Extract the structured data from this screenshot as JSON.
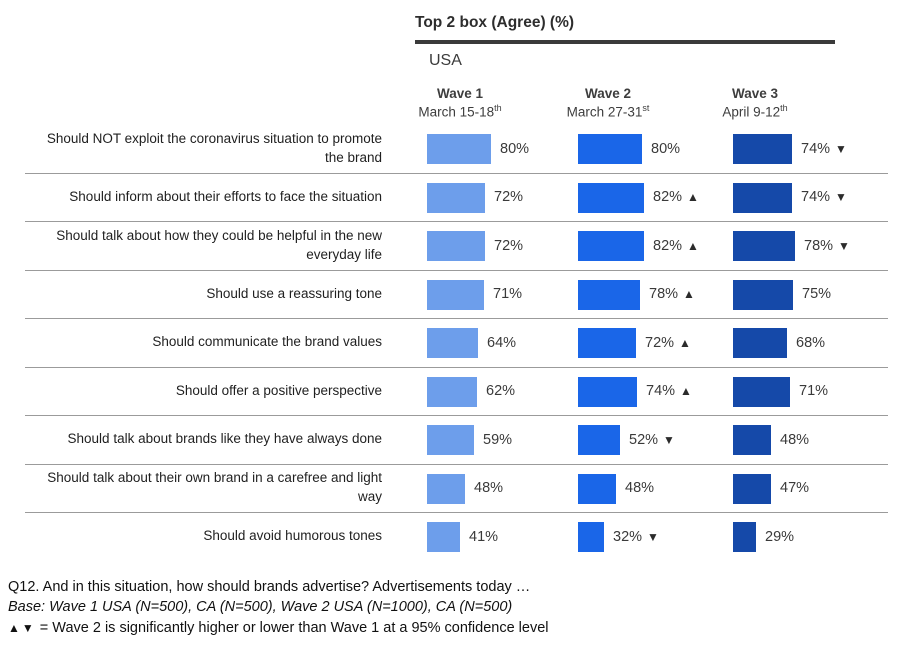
{
  "header": {
    "title": "Top 2 box (Agree) (%)",
    "region": "USA"
  },
  "columns": [
    {
      "wave": "Wave 1",
      "date": "March 15-18",
      "date_sup": "th"
    },
    {
      "wave": "Wave 2",
      "date": "March 27-31",
      "date_sup": "st"
    },
    {
      "wave": "Wave 3",
      "date": "April 9-12",
      "date_sup": "th"
    }
  ],
  "colors": {
    "bar_colors": [
      "#6D9EEB",
      "#1A66E8",
      "#1549A9"
    ],
    "title_rule": "#3A3A3A",
    "row_divider": "#9B9B9B",
    "triangle": "#2B2B2B"
  },
  "chart_data": {
    "type": "bar",
    "orientation": "horizontal",
    "unit": "%",
    "title": "Top 2 box (Agree) (%)",
    "region": "USA",
    "xlim": [
      0,
      100
    ],
    "grid": false,
    "legend": "column headers (Wave 1 / Wave 2 / Wave 3)",
    "categories": [
      "Should NOT exploit the coronavirus situation to promote the brand",
      "Should inform about their efforts to face the situation",
      "Should talk about how they could be helpful in the new everyday life",
      "Should use a reassuring tone",
      "Should communicate the brand values",
      "Should offer a positive perspective",
      "Should talk about brands like they have always done",
      "Should talk about their own brand in a carefree and light way",
      "Should avoid humorous tones"
    ],
    "series": [
      {
        "name": "Wave 1 March 15-18th",
        "values": [
          80,
          72,
          72,
          71,
          64,
          62,
          59,
          48,
          41
        ],
        "deltas": [
          null,
          null,
          null,
          null,
          null,
          null,
          null,
          null,
          null
        ]
      },
      {
        "name": "Wave 2 March 27-31st",
        "values": [
          80,
          82,
          82,
          78,
          72,
          74,
          52,
          48,
          32
        ],
        "deltas": [
          null,
          "up",
          "up",
          "up",
          "up",
          "up",
          "down",
          null,
          "down"
        ]
      },
      {
        "name": "Wave 3 April 9-12th",
        "values": [
          74,
          74,
          78,
          75,
          68,
          71,
          48,
          47,
          29
        ],
        "deltas": [
          "down",
          "down",
          "down",
          null,
          null,
          null,
          null,
          null,
          null
        ]
      }
    ]
  },
  "footer": {
    "line1": "Q12. And in this situation, how should brands advertise? Advertisements today …",
    "line2": "Base: Wave 1 USA (N=500), CA (N=500), Wave 2 USA (N=1000), CA (N=500)",
    "legend_icons": "▲▼",
    "line3": " = Wave 2 is significantly higher or lower than Wave 1 at a 95% confidence level"
  }
}
